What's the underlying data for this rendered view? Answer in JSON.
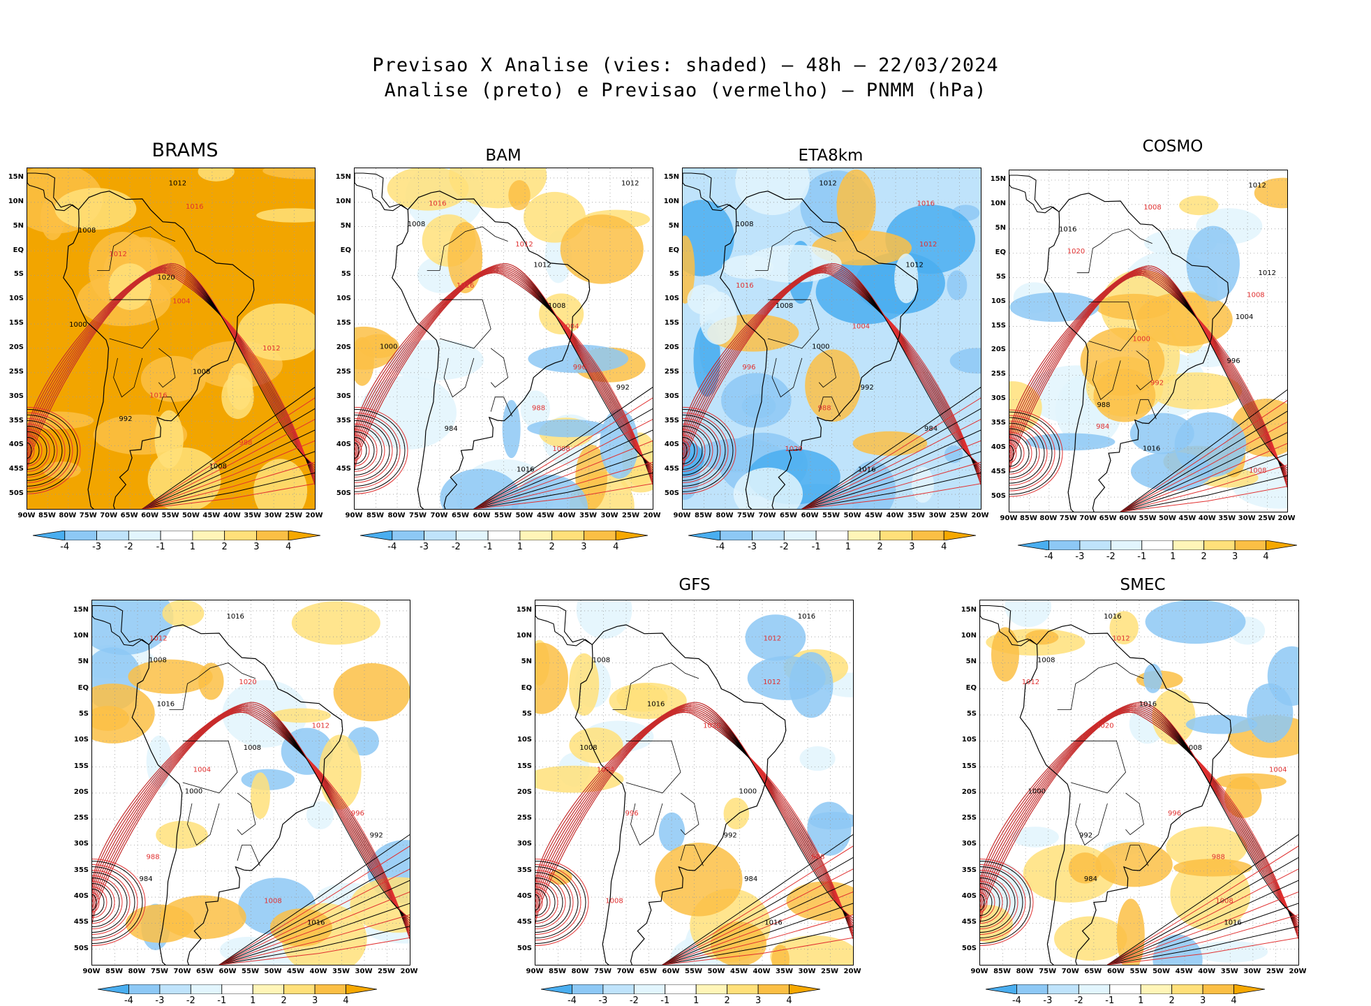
{
  "figure": {
    "title_line1": "Previsao X Analise (vies: shaded) – 48h – 22/03/2024",
    "title_line2": "Analise (preto) e Previsao (vermelho) – PNMM (hPa)"
  },
  "axes": {
    "lat_labels": [
      "15N",
      "10N",
      "5N",
      "EQ",
      "5S",
      "10S",
      "15S",
      "20S",
      "25S",
      "30S",
      "35S",
      "40S",
      "45S",
      "50S"
    ],
    "lon_labels": [
      "90W",
      "85W",
      "80W",
      "75W",
      "70W",
      "65W",
      "60W",
      "55W",
      "50W",
      "45W",
      "40W",
      "35W",
      "30W",
      "25W",
      "20W"
    ]
  },
  "colorbar": {
    "labels": [
      "-4",
      "-3",
      "-2",
      "-1",
      "1",
      "2",
      "3",
      "4"
    ],
    "colors": [
      "#4aaef0",
      "#8dc8f5",
      "#bfe3fb",
      "#e2f5fd",
      "#ffffff",
      "#fff5b8",
      "#ffe07a",
      "#fbbf45",
      "#f6a800"
    ]
  },
  "colors": {
    "analysis_isobar": "#000000",
    "forecast_isobar": "#e03030",
    "land": "#ffffff"
  },
  "panels": [
    {
      "model": "BRAMS",
      "bias": "strong-positive",
      "isobar_labels": [
        "1012",
        "1016",
        "1008",
        "1012",
        "1020",
        "1004",
        "1000",
        "1012",
        "1008",
        "1016",
        "992",
        "988",
        "1008"
      ],
      "shading": {
        "base": "#f2a500",
        "patches": [
          [
            "#fbbf45",
            0.3
          ],
          [
            "#ffe07a",
            0.25
          ]
        ]
      }
    },
    {
      "model": "BAM",
      "bias": "mixed",
      "isobar_labels": [
        "1012",
        "1016",
        "1008",
        "1012",
        "1012",
        "1016",
        "1008",
        "1004",
        "1000",
        "996",
        "992",
        "988",
        "984",
        "1008",
        "1016"
      ],
      "shading": {
        "base": "#ffffff",
        "patches": [
          [
            "#e2f5fd",
            0.2
          ],
          [
            "#ffe07a",
            0.25
          ],
          [
            "#fbbf45",
            0.2
          ],
          [
            "#8dc8f5",
            0.15
          ]
        ]
      }
    },
    {
      "model": "ETA8km",
      "bias": "negative",
      "isobar_labels": [
        "1012",
        "1016",
        "1008",
        "1012",
        "1012",
        "1016",
        "1008",
        "1004",
        "1000",
        "996",
        "992",
        "988",
        "984",
        "1020",
        "1016"
      ],
      "shading": {
        "base": "#bfe3fb",
        "patches": [
          [
            "#8dc8f5",
            0.35
          ],
          [
            "#4aaef0",
            0.2
          ],
          [
            "#fbbf45",
            0.15
          ],
          [
            "#e2f5fd",
            0.2
          ]
        ]
      }
    },
    {
      "model": "COSMO",
      "bias": "mixed",
      "isobar_labels": [
        "1012",
        "1008",
        "1016",
        "1020",
        "1012",
        "1008",
        "1004",
        "1000",
        "996",
        "992",
        "988",
        "984",
        "1016",
        "1008"
      ],
      "shading": {
        "base": "#ffffff",
        "patches": [
          [
            "#e2f5fd",
            0.3
          ],
          [
            "#ffe07a",
            0.2
          ],
          [
            "#fbbf45",
            0.2
          ],
          [
            "#8dc8f5",
            0.15
          ]
        ]
      }
    },
    {
      "model": "",
      "bias": "mixed",
      "isobar_labels": [
        "1016",
        "1012",
        "1008",
        "1020",
        "1016",
        "1012",
        "1008",
        "1004",
        "1000",
        "996",
        "992",
        "988",
        "984",
        "1008",
        "1016"
      ],
      "shading": {
        "base": "#ffffff",
        "patches": [
          [
            "#e2f5fd",
            0.2
          ],
          [
            "#8dc8f5",
            0.2
          ],
          [
            "#ffe07a",
            0.2
          ],
          [
            "#fbbf45",
            0.2
          ]
        ]
      }
    },
    {
      "model": "GFS",
      "bias": "mixed",
      "isobar_labels": [
        "1016",
        "1012",
        "1008",
        "1012",
        "1016",
        "1020",
        "1008",
        "1004",
        "1000",
        "996",
        "992",
        "988",
        "984",
        "1008",
        "1016"
      ],
      "shading": {
        "base": "#ffffff",
        "patches": [
          [
            "#e2f5fd",
            0.2
          ],
          [
            "#ffe07a",
            0.25
          ],
          [
            "#8dc8f5",
            0.15
          ],
          [
            "#fbbf45",
            0.15
          ]
        ]
      }
    },
    {
      "model": "SMEC",
      "bias": "mixed",
      "isobar_labels": [
        "1016",
        "1012",
        "1008",
        "1012",
        "1016",
        "1020",
        "1008",
        "1004",
        "1000",
        "996",
        "992",
        "988",
        "984",
        "1008",
        "1016"
      ],
      "shading": {
        "base": "#ffffff",
        "patches": [
          [
            "#e2f5fd",
            0.2
          ],
          [
            "#ffe07a",
            0.2
          ],
          [
            "#fbbf45",
            0.25
          ],
          [
            "#8dc8f5",
            0.15
          ]
        ]
      }
    }
  ]
}
